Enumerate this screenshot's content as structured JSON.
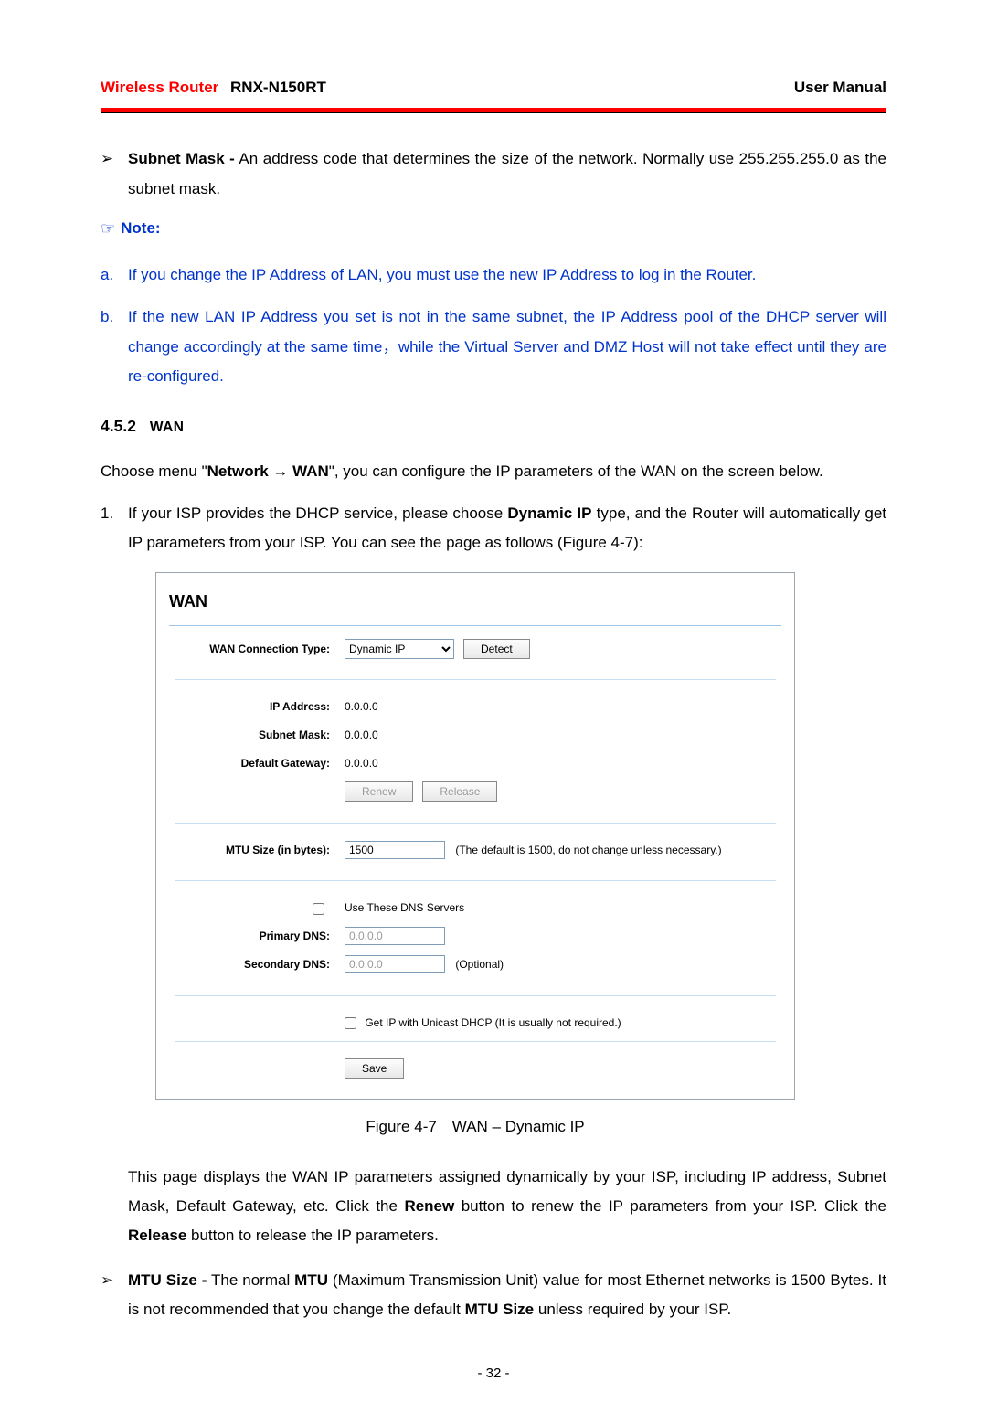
{
  "header": {
    "brand": "Wireless Router",
    "model": "RNX-N150RT",
    "right": "User Manual"
  },
  "subnet_bullet": {
    "mark": "➢",
    "label": "Subnet Mask -",
    "text": " An address code that determines the size of the network. Normally use 255.255.255.0 as the subnet mask."
  },
  "note": {
    "icon": "☞",
    "label": "Note:"
  },
  "note_items": [
    {
      "mark": "a.",
      "text": "If you change the IP Address of LAN, you must use the new IP Address to log in the Router."
    },
    {
      "mark": "b.",
      "text": "If the new LAN IP Address you set is not in the same subnet, the IP Address pool of the DHCP server will change accordingly at the same time，while the Virtual Server and DMZ Host will not take effect until they are re-configured."
    }
  ],
  "section": {
    "num": "4.5.2",
    "title": "WAN"
  },
  "wan_intro_pre": "Choose menu \"",
  "wan_intro_bold": "Network → WAN",
  "wan_intro_post": "\", you can configure the IP parameters of the WAN on the screen below.",
  "list1": {
    "mark": "1.",
    "pre": "If your ISP provides the DHCP service, please choose ",
    "bold": "Dynamic IP",
    "post": " type, and the Router will automatically get IP parameters from your ISP. You can see the page as follows (Figure 4-7):"
  },
  "panel": {
    "title": "WAN",
    "labels": {
      "conn_type": "WAN Connection Type:",
      "ip": "IP Address:",
      "mask": "Subnet Mask:",
      "gw": "Default Gateway:",
      "mtu": "MTU Size (in bytes):",
      "pdns": "Primary DNS:",
      "sdns": "Secondary DNS:"
    },
    "values": {
      "conn_type": "Dynamic IP",
      "ip": "0.0.0.0",
      "mask": "0.0.0.0",
      "gw": "0.0.0.0",
      "mtu": "1500",
      "pdns": "0.0.0.0",
      "sdns": "0.0.0.0"
    },
    "buttons": {
      "detect": "Detect",
      "renew": "Renew",
      "release": "Release",
      "save": "Save"
    },
    "hints": {
      "mtu": "(The default is 1500, do not change unless necessary.)",
      "use_dns": "Use These DNS Servers",
      "optional": "(Optional)",
      "unicast": "Get IP with Unicast DHCP (It is usually not required.)"
    }
  },
  "fig_caption": "Figure 4-7 WAN – Dynamic IP",
  "explain": {
    "p1_pre": "This page displays the WAN IP parameters assigned dynamically by your ISP, including IP address, Subnet Mask, Default Gateway, etc. Click the ",
    "p1_b1": "Renew",
    "p1_mid": " button to renew the IP parameters from your ISP. Click the ",
    "p1_b2": "Release",
    "p1_post": " button to release the IP parameters."
  },
  "mtu_bullet": {
    "mark": "➢",
    "b1": "MTU Size -",
    "t1": " The normal ",
    "b2": "MTU",
    "t2": " (Maximum Transmission Unit) value for most Ethernet networks is 1500 Bytes. It is not recommended that you change the default ",
    "b3": "MTU Size",
    "t3": " unless required by your ISP."
  },
  "page_num": "- 32 -"
}
